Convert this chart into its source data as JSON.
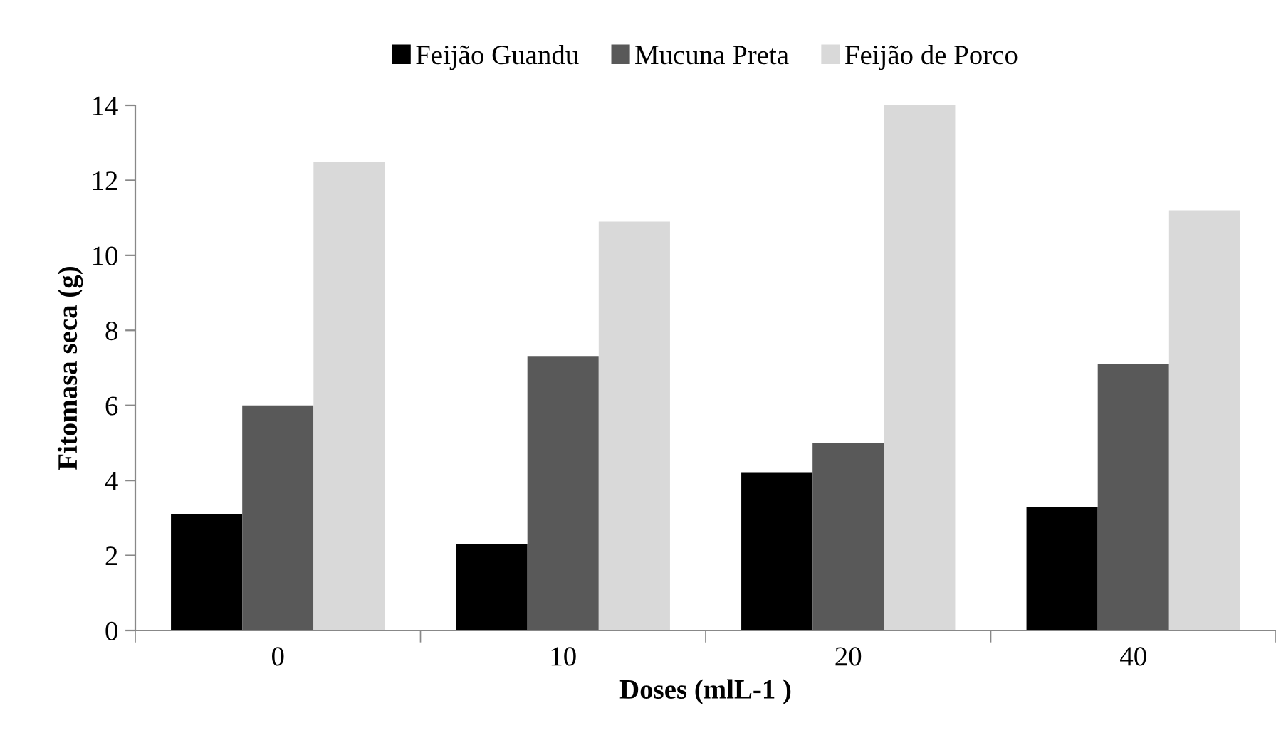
{
  "chart_data": {
    "type": "bar",
    "xlabel": "Doses (mlL-1 )",
    "ylabel": "Fitomasa seca (g)",
    "categories": [
      "0",
      "10",
      "20",
      "40"
    ],
    "series": [
      {
        "name": "Feijão Guandu",
        "color": "#000000",
        "values": [
          3.1,
          2.3,
          4.2,
          3.3
        ]
      },
      {
        "name": "Mucuna Preta",
        "color": "#595959",
        "values": [
          6.0,
          7.3,
          5.0,
          7.1
        ]
      },
      {
        "name": "Feijão de Porco",
        "color": "#d9d9d9",
        "values": [
          12.5,
          10.9,
          14.0,
          11.2
        ]
      }
    ],
    "ylim": [
      0,
      14
    ],
    "yticks": [
      0,
      2,
      4,
      6,
      8,
      10,
      12,
      14
    ],
    "grid": false,
    "legend": "top"
  }
}
